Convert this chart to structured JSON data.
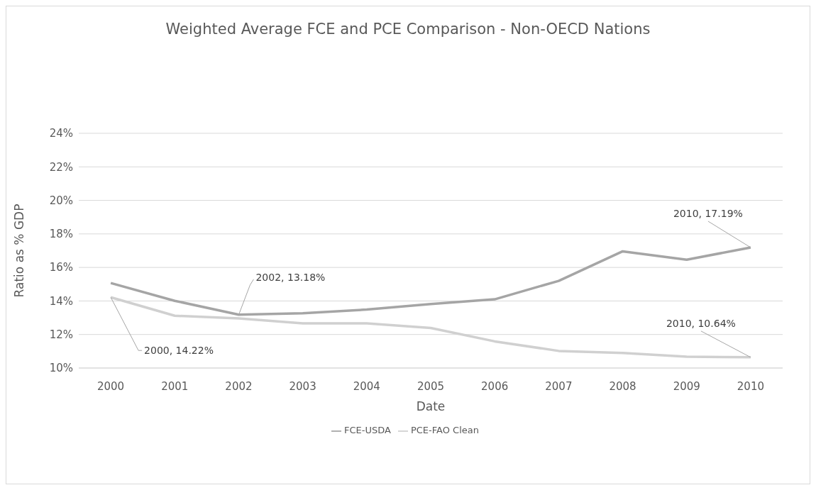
{
  "chart_data": {
    "type": "line",
    "title": "Weighted Average FCE and PCE Comparison - Non-OECD Nations",
    "xlabel": "Date",
    "ylabel": "Ratio as % GDP",
    "categories": [
      "2000",
      "2001",
      "2002",
      "2003",
      "2004",
      "2005",
      "2006",
      "2007",
      "2008",
      "2009",
      "2010"
    ],
    "series": [
      {
        "name": "FCE-USDA",
        "color": "#a5a5a5",
        "values": [
          15.07,
          14.01,
          13.18,
          13.27,
          13.49,
          13.82,
          14.1,
          15.2,
          16.96,
          16.46,
          17.19
        ]
      },
      {
        "name": "PCE-FAO Clean",
        "color": "#d0d0d0",
        "values": [
          14.22,
          13.12,
          12.96,
          12.66,
          12.66,
          12.39,
          11.59,
          11.02,
          10.9,
          10.68,
          10.64
        ]
      }
    ],
    "ylim": [
      10,
      24
    ],
    "yticks": [
      {
        "value": 10,
        "label": "10%"
      },
      {
        "value": 12,
        "label": "12%"
      },
      {
        "value": 14,
        "label": "14%"
      },
      {
        "value": 16,
        "label": "16%"
      },
      {
        "value": 18,
        "label": "18%"
      },
      {
        "value": 20,
        "label": "20%"
      },
      {
        "value": 22,
        "label": "22%"
      },
      {
        "value": 24,
        "label": "24%"
      }
    ],
    "annotations": [
      {
        "text": "2000, 14.22%",
        "x": "2000",
        "y": 14.22
      },
      {
        "text": "2002, 13.18%",
        "x": "2002",
        "y": 13.18
      },
      {
        "text": "2010, 17.19%",
        "x": "2010",
        "y": 17.19
      },
      {
        "text": "2010, 10.64%",
        "x": "2010",
        "y": 10.64
      }
    ],
    "grid": "y",
    "legend": "bottom",
    "marker": "none",
    "line_style": "solid"
  }
}
